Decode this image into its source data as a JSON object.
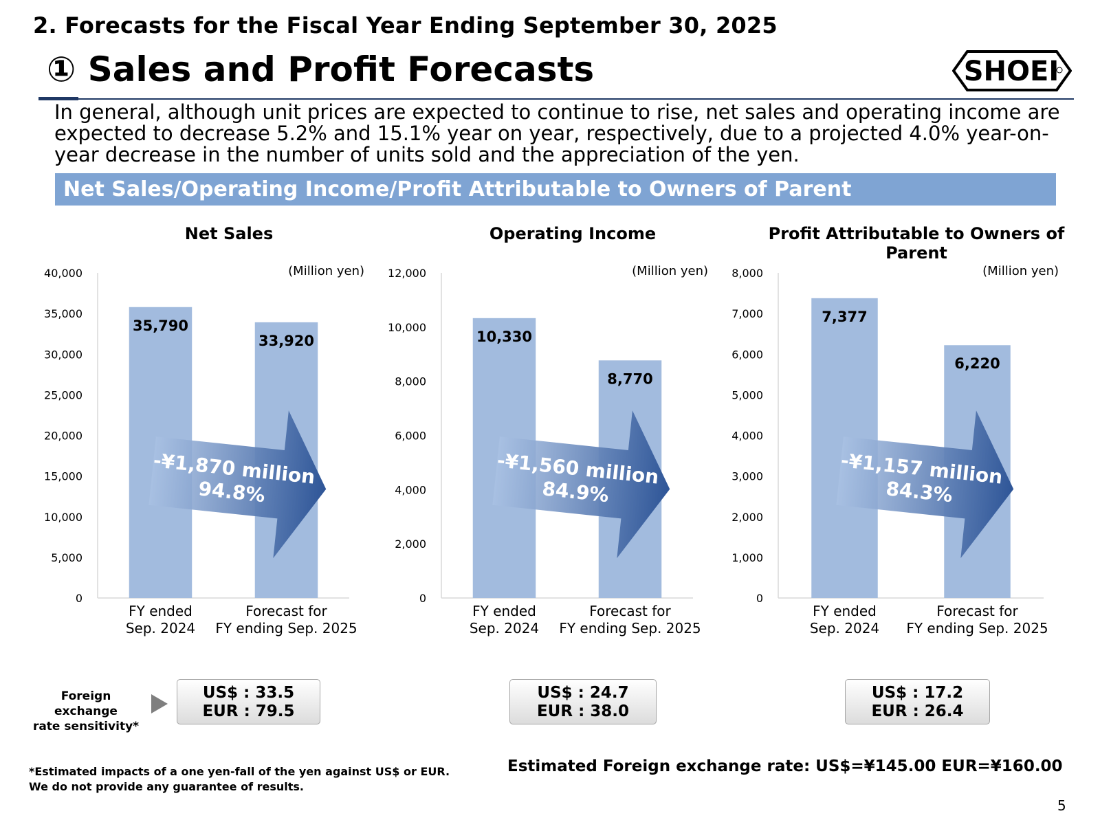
{
  "header": {
    "section": "2. Forecasts for the Fiscal Year Ending September 30, 2025",
    "title": "① Sales and Profit Forecasts",
    "logo_text": "SHOEI"
  },
  "summary": "In general, although unit prices are expected to continue to rise, net sales and operating income are expected to decrease 5.2% and 15.1% year on year, respectively, due to a projected 4.0% year-on-year decrease in the number of units sold and the appreciation of the yen.",
  "banner": "Net Sales/Operating Income/Profit Attributable to Owners of Parent",
  "colors": {
    "bar": "#a2bbde",
    "banner": "#7fa4d3",
    "arrow_dark": "#2e5597",
    "arrow_light": "#a9c1e3",
    "axis": "#d9d9d9"
  },
  "chart_data": [
    {
      "type": "bar",
      "title": [
        "Net Sales"
      ],
      "unit": "(Million yen)",
      "categories": [
        [
          "FY ended",
          "Sep. 2024"
        ],
        [
          "Forecast for",
          "FY ending Sep. 2025"
        ]
      ],
      "values": [
        35790,
        33920
      ],
      "value_labels": [
        "35,790",
        "33,920"
      ],
      "ylim": [
        0,
        40000
      ],
      "yticks": [
        0,
        5000,
        10000,
        15000,
        20000,
        25000,
        30000,
        35000,
        40000
      ],
      "ytick_labels": [
        "0",
        "5,000",
        "10,000",
        "15,000",
        "20,000",
        "25,000",
        "30,000",
        "35,000",
        "40,000"
      ],
      "change_label": "-¥1,870 million",
      "ratio_label": "94.8%"
    },
    {
      "type": "bar",
      "title": [
        "Operating Income"
      ],
      "unit": "(Million yen)",
      "categories": [
        [
          "FY ended",
          "Sep. 2024"
        ],
        [
          "Forecast for",
          "FY ending Sep. 2025"
        ]
      ],
      "values": [
        10330,
        8770
      ],
      "value_labels": [
        "10,330",
        "8,770"
      ],
      "ylim": [
        0,
        12000
      ],
      "yticks": [
        0,
        2000,
        4000,
        6000,
        8000,
        10000,
        12000
      ],
      "ytick_labels": [
        "0",
        "2,000",
        "4,000",
        "6,000",
        "8,000",
        "10,000",
        "12,000"
      ],
      "change_label": "-¥1,560 million",
      "ratio_label": "84.9%"
    },
    {
      "type": "bar",
      "title": [
        "Profit Attributable to Owners of",
        "Parent"
      ],
      "unit": "(Million yen)",
      "categories": [
        [
          "FY ended",
          "Sep. 2024"
        ],
        [
          "Forecast for",
          "FY ending Sep. 2025"
        ]
      ],
      "values": [
        7377,
        6220
      ],
      "value_labels": [
        "7,377",
        "6,220"
      ],
      "ylim": [
        0,
        8000
      ],
      "yticks": [
        0,
        1000,
        2000,
        3000,
        4000,
        5000,
        6000,
        7000,
        8000
      ],
      "ytick_labels": [
        "0",
        "1,000",
        "2,000",
        "3,000",
        "4,000",
        "5,000",
        "6,000",
        "7,000",
        "8,000"
      ],
      "change_label": "-¥1,157 million",
      "ratio_label": "84.3%"
    }
  ],
  "fx_sensitivity": {
    "label_line1": "Foreign exchange",
    "label_line2": "rate sensitivity*",
    "boxes": [
      {
        "usd": "US$ : 33.5",
        "eur": "EUR : 79.5"
      },
      {
        "usd": "US$ : 24.7",
        "eur": "EUR : 38.0"
      },
      {
        "usd": "US$ : 17.2",
        "eur": "EUR : 26.4"
      }
    ]
  },
  "footnote": {
    "line1": "*Estimated impacts of a one yen-fall of the yen against US$ or EUR.",
    "line2": "We do not provide any guarantee of results."
  },
  "fx_rate_note": "Estimated Foreign exchange rate: US$=¥145.00  EUR=¥160.00",
  "page_number": "5"
}
